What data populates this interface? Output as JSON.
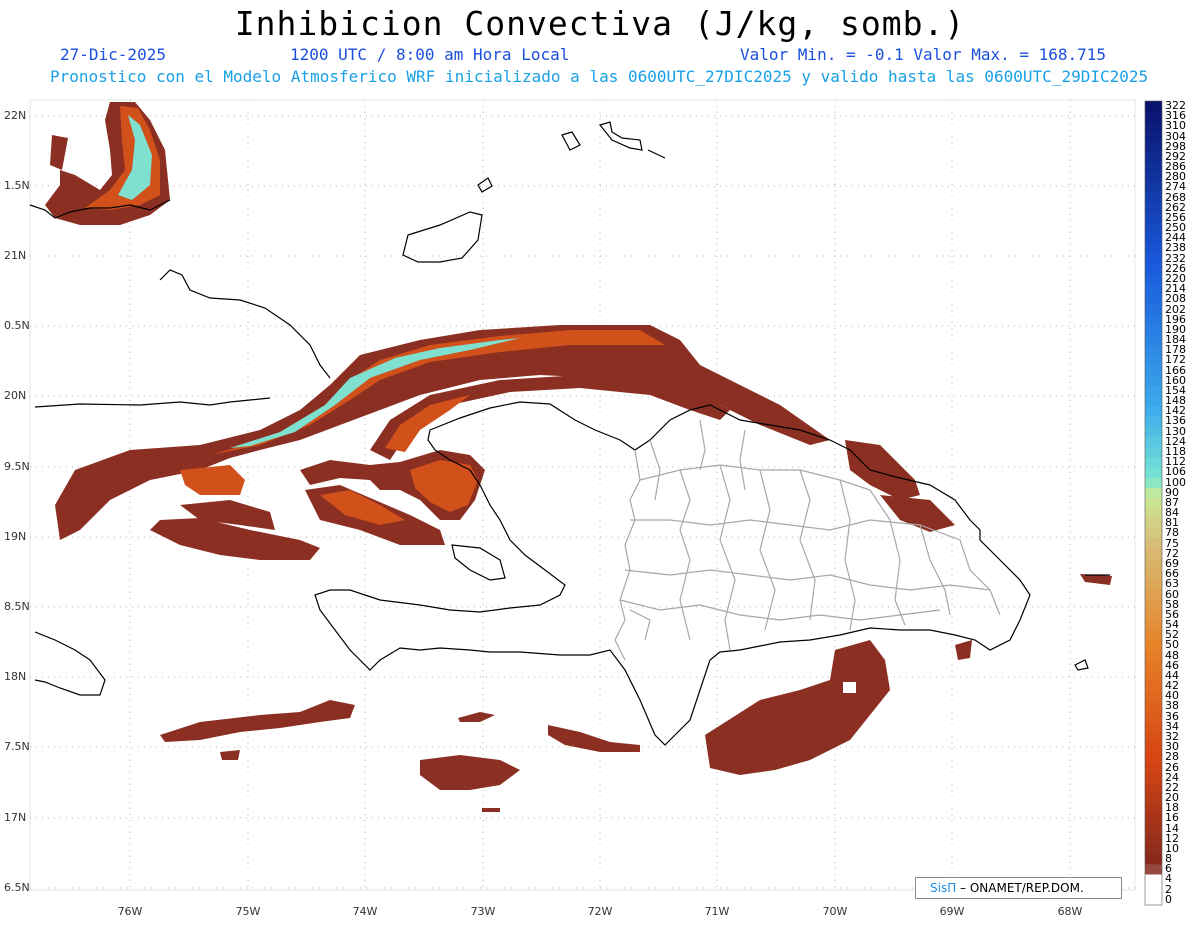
{
  "header": {
    "title": "Inhibicion Convectiva (J/kg, somb.)",
    "date": "27-Dic-2025",
    "time": "1200 UTC / 8:00 am Hora Local",
    "minmax": "Valor Min. = -0.1  Valor Max. = 168.715",
    "model_line": "Pronostico con el Modelo Atmosferico WRF inicializado a las 0600UTC_27DIC2025 y valido hasta las  0600UTC_29DIC2025"
  },
  "axes": {
    "lat_labels": [
      "22N",
      "1.5N",
      "21N",
      "0.5N",
      "20N",
      "9.5N",
      "19N",
      "8.5N",
      "18N",
      "7.5N",
      "17N",
      "6.5N"
    ],
    "lon_labels": [
      "76W",
      "75W",
      "74W",
      "73W",
      "72W",
      "71W",
      "70W",
      "69W",
      "68W"
    ]
  },
  "colorbar": {
    "labels": [
      "322",
      "316",
      "310",
      "304",
      "298",
      "292",
      "286",
      "280",
      "274",
      "268",
      "262",
      "256",
      "250",
      "244",
      "238",
      "232",
      "226",
      "220",
      "214",
      "208",
      "202",
      "196",
      "190",
      "184",
      "178",
      "172",
      "166",
      "160",
      "154",
      "148",
      "142",
      "136",
      "130",
      "124",
      "118",
      "112",
      "106",
      "100",
      "90",
      "87",
      "84",
      "81",
      "78",
      "75",
      "72",
      "69",
      "66",
      "63",
      "60",
      "58",
      "56",
      "54",
      "52",
      "50",
      "48",
      "46",
      "44",
      "42",
      "40",
      "38",
      "36",
      "34",
      "32",
      "30",
      "28",
      "26",
      "24",
      "22",
      "20",
      "18",
      "16",
      "14",
      "12",
      "10",
      "8",
      "6",
      "4",
      "2",
      "0"
    ]
  },
  "credit": {
    "sis": "SisΠ",
    "org": " – ONAMET/REP.DOM."
  },
  "colors": {
    "land_line": "#000000",
    "province_line": "#a8a8a8",
    "cin_low": "#8b2f22",
    "cin_mid": "#d2501a",
    "cin_high": "#7fe0d0",
    "title_blue": "#1a4fe0",
    "sub_cyan": "#19a0e6"
  }
}
